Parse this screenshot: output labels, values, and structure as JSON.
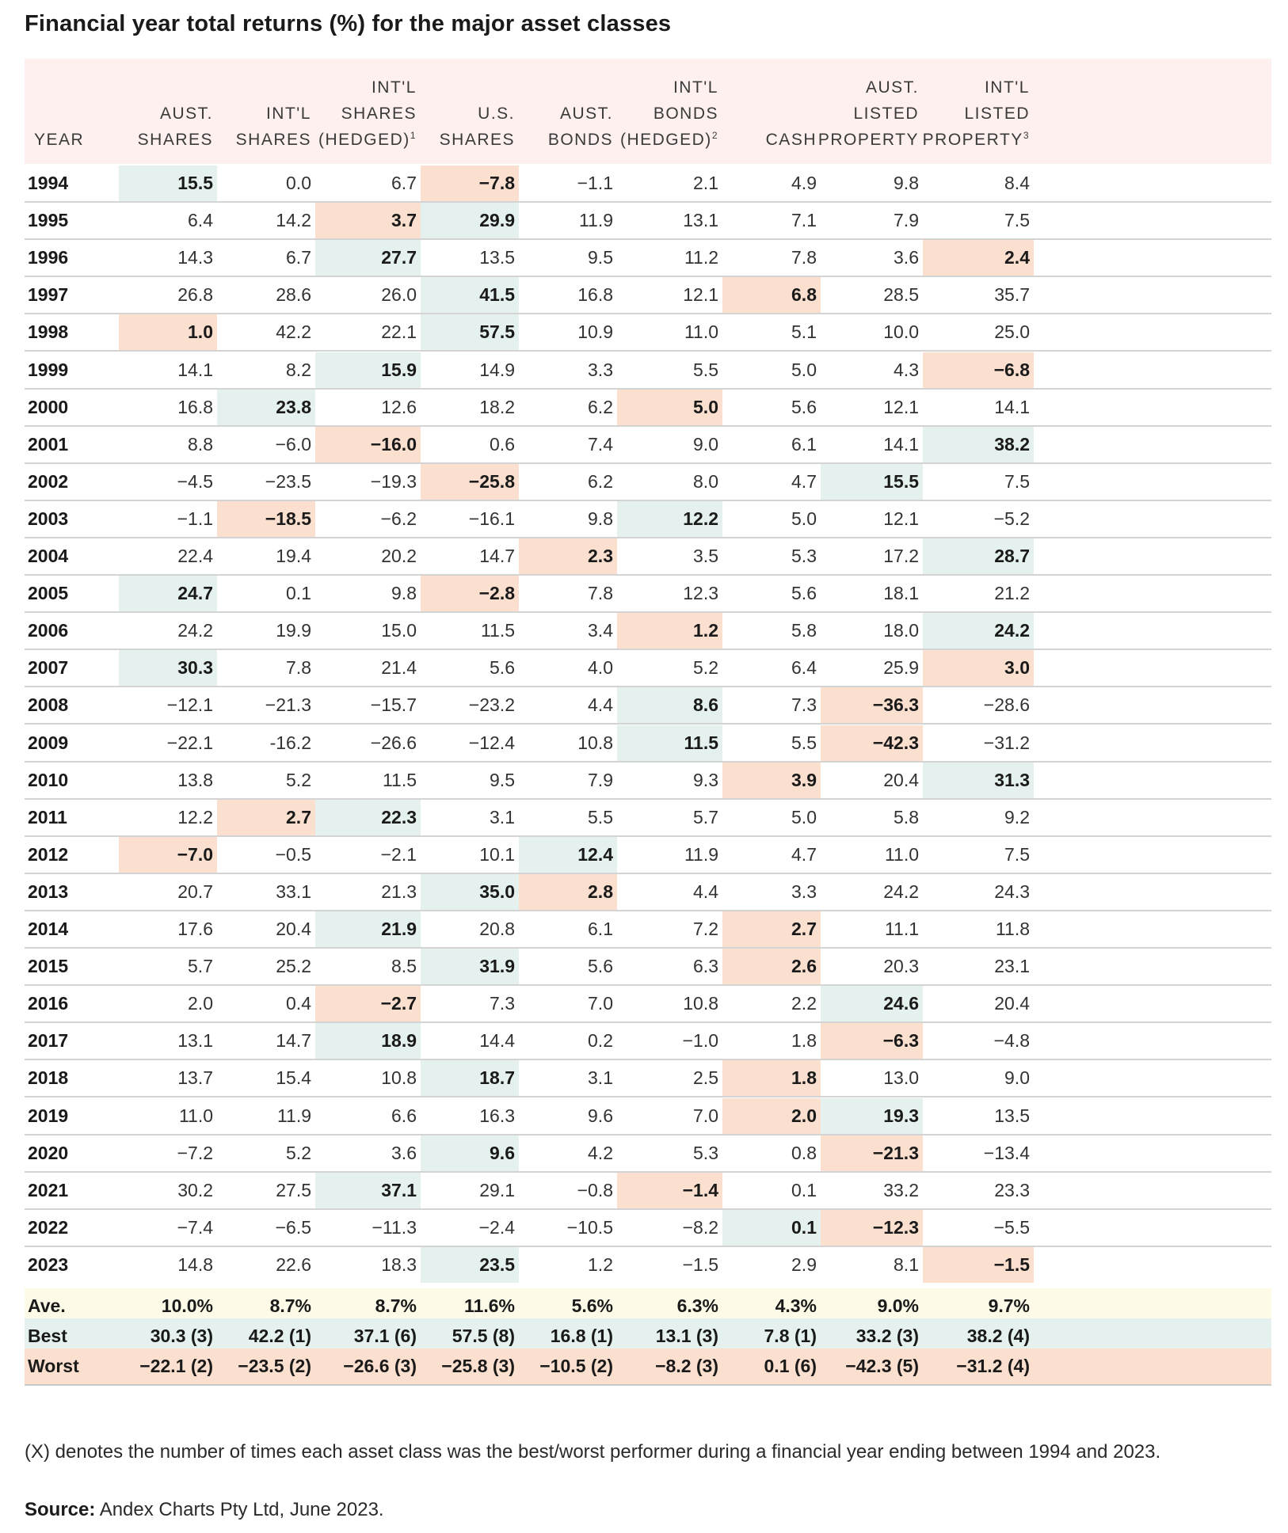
{
  "title": "Financial year total returns (%) for the major asset classes",
  "headers": [
    {
      "lines": [
        "YEAR"
      ]
    },
    {
      "lines": [
        "AUST.",
        "SHARES"
      ]
    },
    {
      "lines": [
        "INT'L",
        "SHARES"
      ]
    },
    {
      "lines": [
        "INT'L",
        "SHARES",
        "(HEDGED)"
      ],
      "sup": "1"
    },
    {
      "lines": [
        "U.S.",
        "SHARES"
      ]
    },
    {
      "lines": [
        "AUST.",
        "BONDS"
      ]
    },
    {
      "lines": [
        "INT'L",
        "BONDS",
        "(HEDGED)"
      ],
      "sup": "2"
    },
    {
      "lines": [
        "CASH"
      ]
    },
    {
      "lines": [
        "AUST.",
        "LISTED",
        "PROPERTY"
      ]
    },
    {
      "lines": [
        "INT'L",
        "LISTED",
        "PROPERTY"
      ],
      "sup": "3"
    }
  ],
  "rows": [
    {
      "year": "1994",
      "values": [
        "15.5",
        "0.0",
        "6.7",
        "−7.8",
        "−1.1",
        "2.1",
        "4.9",
        "9.8",
        "8.4"
      ],
      "best": 0,
      "worst": 3
    },
    {
      "year": "1995",
      "values": [
        "6.4",
        "14.2",
        "3.7",
        "29.9",
        "11.9",
        "13.1",
        "7.1",
        "7.9",
        "7.5"
      ],
      "best": 3,
      "worst": 2
    },
    {
      "year": "1996",
      "values": [
        "14.3",
        "6.7",
        "27.7",
        "13.5",
        "9.5",
        "11.2",
        "7.8",
        "3.6",
        "2.4"
      ],
      "best": 2,
      "worst": 8
    },
    {
      "year": "1997",
      "values": [
        "26.8",
        "28.6",
        "26.0",
        "41.5",
        "16.8",
        "12.1",
        "6.8",
        "28.5",
        "35.7"
      ],
      "best": 3,
      "worst": 6
    },
    {
      "year": "1998",
      "values": [
        "1.0",
        "42.2",
        "22.1",
        "57.5",
        "10.9",
        "11.0",
        "5.1",
        "10.0",
        "25.0"
      ],
      "best": 3,
      "worst": 0
    },
    {
      "year": "1999",
      "values": [
        "14.1",
        "8.2",
        "15.9",
        "14.9",
        "3.3",
        "5.5",
        "5.0",
        "4.3",
        "−6.8"
      ],
      "best": 2,
      "worst": 8
    },
    {
      "year": "2000",
      "values": [
        "16.8",
        "23.8",
        "12.6",
        "18.2",
        "6.2",
        "5.0",
        "5.6",
        "12.1",
        "14.1"
      ],
      "best": 1,
      "worst": 5
    },
    {
      "year": "2001",
      "values": [
        "8.8",
        "−6.0",
        "−16.0",
        "0.6",
        "7.4",
        "9.0",
        "6.1",
        "14.1",
        "38.2"
      ],
      "best": 8,
      "worst": 2
    },
    {
      "year": "2002",
      "values": [
        "−4.5",
        "−23.5",
        "−19.3",
        "−25.8",
        "6.2",
        "8.0",
        "4.7",
        "15.5",
        "7.5"
      ],
      "best": 7,
      "worst": 3
    },
    {
      "year": "2003",
      "values": [
        "−1.1",
        "−18.5",
        "−6.2",
        "−16.1",
        "9.8",
        "12.2",
        "5.0",
        "12.1",
        "−5.2"
      ],
      "best": 5,
      "worst": 1
    },
    {
      "year": "2004",
      "values": [
        "22.4",
        "19.4",
        "20.2",
        "14.7",
        "2.3",
        "3.5",
        "5.3",
        "17.2",
        "28.7"
      ],
      "best": 8,
      "worst": 4
    },
    {
      "year": "2005",
      "values": [
        "24.7",
        "0.1",
        "9.8",
        "−2.8",
        "7.8",
        "12.3",
        "5.6",
        "18.1",
        "21.2"
      ],
      "best": 0,
      "worst": 3
    },
    {
      "year": "2006",
      "values": [
        "24.2",
        "19.9",
        "15.0",
        "11.5",
        "3.4",
        "1.2",
        "5.8",
        "18.0",
        "24.2"
      ],
      "best": 8,
      "worst": 5
    },
    {
      "year": "2007",
      "values": [
        "30.3",
        "7.8",
        "21.4",
        "5.6",
        "4.0",
        "5.2",
        "6.4",
        "25.9",
        "3.0"
      ],
      "best": 0,
      "worst": 8
    },
    {
      "year": "2008",
      "values": [
        "−12.1",
        "−21.3",
        "−15.7",
        "−23.2",
        "4.4",
        "8.6",
        "7.3",
        "−36.3",
        "−28.6"
      ],
      "best": 5,
      "worst": 7
    },
    {
      "year": "2009",
      "values": [
        "−22.1",
        "-16.2",
        "−26.6",
        "−12.4",
        "10.8",
        "11.5",
        "5.5",
        "−42.3",
        "−31.2"
      ],
      "best": 5,
      "worst": 7
    },
    {
      "year": "2010",
      "values": [
        "13.8",
        "5.2",
        "11.5",
        "9.5",
        "7.9",
        "9.3",
        "3.9",
        "20.4",
        "31.3"
      ],
      "best": 8,
      "worst": 6
    },
    {
      "year": "2011",
      "values": [
        "12.2",
        "2.7",
        "22.3",
        "3.1",
        "5.5",
        "5.7",
        "5.0",
        "5.8",
        "9.2"
      ],
      "best": 2,
      "worst": 1
    },
    {
      "year": "2012",
      "values": [
        "−7.0",
        "−0.5",
        "−2.1",
        "10.1",
        "12.4",
        "11.9",
        "4.7",
        "11.0",
        "7.5"
      ],
      "best": 4,
      "worst": 0
    },
    {
      "year": "2013",
      "values": [
        "20.7",
        "33.1",
        "21.3",
        "35.0",
        "2.8",
        "4.4",
        "3.3",
        "24.2",
        "24.3"
      ],
      "best": 3,
      "worst": 4
    },
    {
      "year": "2014",
      "values": [
        "17.6",
        "20.4",
        "21.9",
        "20.8",
        "6.1",
        "7.2",
        "2.7",
        "11.1",
        "11.8"
      ],
      "best": 2,
      "worst": 6
    },
    {
      "year": "2015",
      "values": [
        "5.7",
        "25.2",
        "8.5",
        "31.9",
        "5.6",
        "6.3",
        "2.6",
        "20.3",
        "23.1"
      ],
      "best": 3,
      "worst": 6
    },
    {
      "year": "2016",
      "values": [
        "2.0",
        "0.4",
        "−2.7",
        "7.3",
        "7.0",
        "10.8",
        "2.2",
        "24.6",
        "20.4"
      ],
      "best": 7,
      "worst": 2
    },
    {
      "year": "2017",
      "values": [
        "13.1",
        "14.7",
        "18.9",
        "14.4",
        "0.2",
        "−1.0",
        "1.8",
        "−6.3",
        "−4.8"
      ],
      "best": 2,
      "worst": 7
    },
    {
      "year": "2018",
      "values": [
        "13.7",
        "15.4",
        "10.8",
        "18.7",
        "3.1",
        "2.5",
        "1.8",
        "13.0",
        "9.0"
      ],
      "best": 3,
      "worst": 6
    },
    {
      "year": "2019",
      "values": [
        "11.0",
        "11.9",
        "6.6",
        "16.3",
        "9.6",
        "7.0",
        "2.0",
        "19.3",
        "13.5"
      ],
      "best": 7,
      "worst": 6
    },
    {
      "year": "2020",
      "values": [
        "−7.2",
        "5.2",
        "3.6",
        "9.6",
        "4.2",
        "5.3",
        "0.8",
        "−21.3",
        "−13.4"
      ],
      "best": 3,
      "worst": 7
    },
    {
      "year": "2021",
      "values": [
        "30.2",
        "27.5",
        "37.1",
        "29.1",
        "−0.8",
        "−1.4",
        "0.1",
        "33.2",
        "23.3"
      ],
      "best": 2,
      "worst": 5
    },
    {
      "year": "2022",
      "values": [
        "−7.4",
        "−6.5",
        "−11.3",
        "−2.4",
        "−10.5",
        "−8.2",
        "0.1",
        "−12.3",
        "−5.5"
      ],
      "best": 6,
      "worst": 7
    },
    {
      "year": "2023",
      "values": [
        "14.8",
        "22.6",
        "18.3",
        "23.5",
        "1.2",
        "−1.5",
        "2.9",
        "8.1",
        "−1.5"
      ],
      "best": 3,
      "worst": 8
    }
  ],
  "summary": {
    "ave": {
      "label": "Ave.",
      "values": [
        "10.0%",
        "8.7%",
        "8.7%",
        "11.6%",
        "5.6%",
        "6.3%",
        "4.3%",
        "9.0%",
        "9.7%"
      ]
    },
    "best": {
      "label": "Best",
      "values": [
        "30.3 (3)",
        "42.2 (1)",
        "37.1 (6)",
        "57.5 (8)",
        "16.8 (1)",
        "13.1 (3)",
        "7.8 (1)",
        "33.2 (3)",
        "38.2 (4)"
      ]
    },
    "worst": {
      "label": "Worst",
      "values": [
        "−22.1 (2)",
        "−23.5 (2)",
        "−26.6 (3)",
        "−25.8 (3)",
        "−10.5 (2)",
        "−8.2 (3)",
        "0.1 (6)",
        "−42.3 (5)",
        "−31.2 (4)"
      ]
    }
  },
  "footnote": "(X) denotes the number of times each asset class was the best/worst performer during a financial year ending between 1994 and 2023.",
  "source_label": "Source:",
  "source_text": " Andex Charts Pty Ltd, June 2023.",
  "colors": {
    "best": "#e4f1ee",
    "worst": "#fbdfcf",
    "header": "#fdf0ee",
    "average": "#fdfae7"
  }
}
